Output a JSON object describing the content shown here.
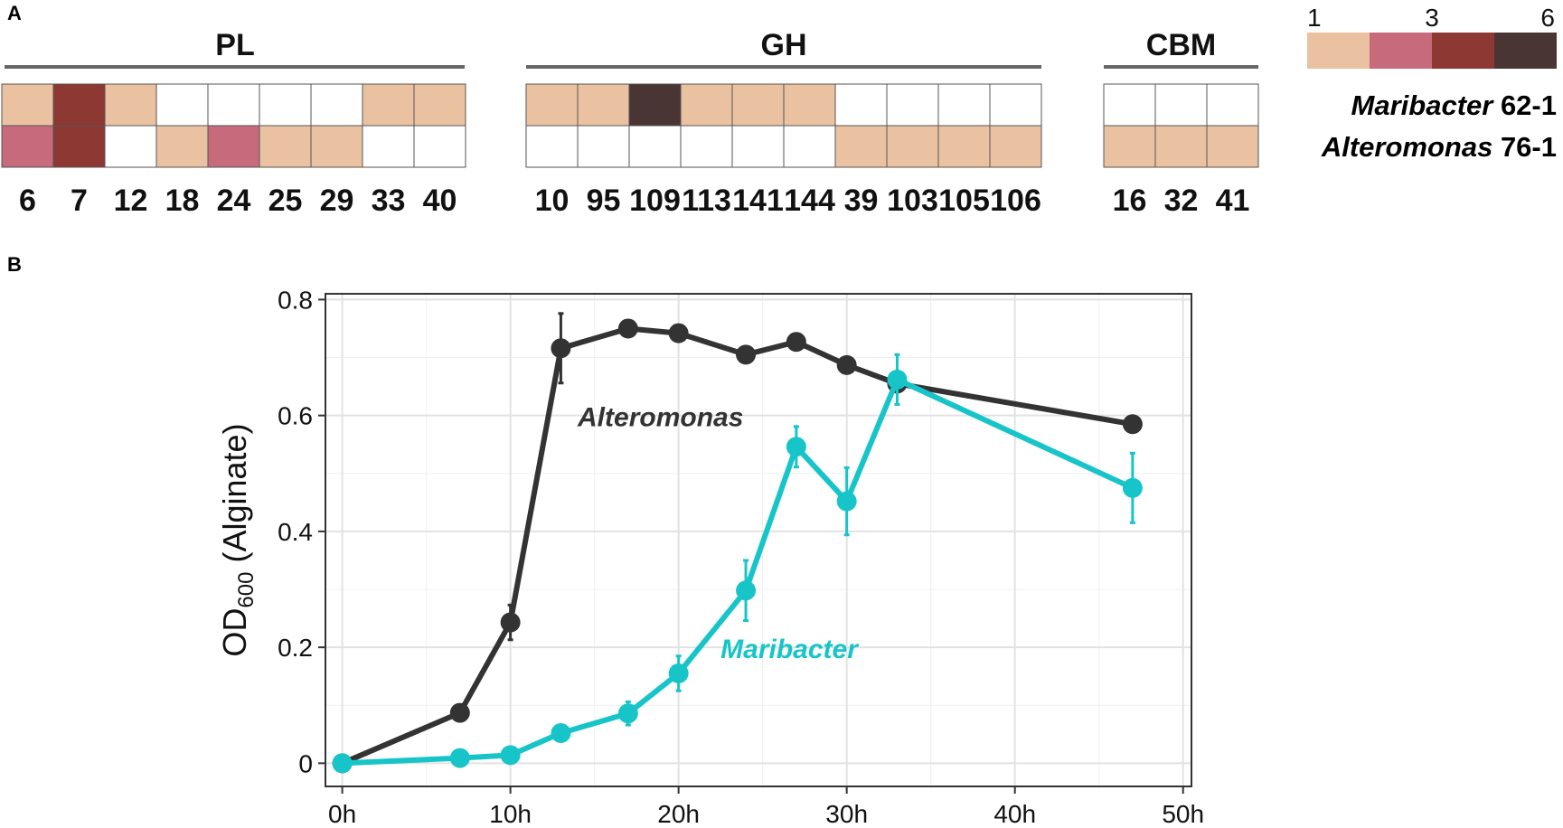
{
  "panel_a_label": "A",
  "panel_b_label": "B",
  "colors": {
    "empty": "#ffffff",
    "level1": "#ebc2a1",
    "level2": "#c66a7c",
    "level3": "#8d3833",
    "level6": "#4a3535",
    "maribacter": "#17c5c9",
    "alteromonas": "#333333",
    "grid": "#e2e2e2",
    "group_line": "#666666"
  },
  "chart_data": [
    {
      "type": "heatmap",
      "rows": [
        {
          "genus": "Maribacter",
          "strain": "62-1"
        },
        {
          "genus": "Alteromonas",
          "strain": "76-1"
        }
      ],
      "groups": [
        {
          "name": "PL",
          "families": [
            "6",
            "7",
            "12",
            "18",
            "24",
            "25",
            "29",
            "33",
            "40"
          ],
          "values": [
            [
              1,
              3,
              1,
              0,
              0,
              0,
              0,
              1,
              1
            ],
            [
              2,
              3,
              0,
              1,
              2,
              1,
              1,
              0,
              0
            ]
          ]
        },
        {
          "name": "GH",
          "families": [
            "10",
            "95",
            "109",
            "113",
            "141",
            "144",
            "39",
            "103",
            "105",
            "106"
          ],
          "values": [
            [
              1,
              1,
              6,
              1,
              1,
              1,
              0,
              0,
              0,
              0
            ],
            [
              0,
              0,
              0,
              0,
              0,
              0,
              1,
              1,
              1,
              1
            ]
          ]
        },
        {
          "name": "CBM",
          "families": [
            "16",
            "32",
            "41"
          ],
          "values": [
            [
              0,
              0,
              0
            ],
            [
              1,
              1,
              1
            ]
          ]
        }
      ],
      "legend": {
        "tick_labels": [
          "1",
          "3",
          "6"
        ],
        "levels": [
          1,
          2,
          3,
          6
        ]
      }
    },
    {
      "type": "line",
      "ylabel": "OD",
      "ylabel_sub": "600",
      "ylabel_suffix": " (Alginate)",
      "xlim": [
        -1,
        50.5
      ],
      "ylim": [
        -0.04,
        0.81
      ],
      "x_ticks": [
        0,
        10,
        20,
        30,
        40,
        50
      ],
      "x_tick_labels": [
        "0h",
        "10h",
        "20h",
        "30h",
        "40h",
        "50h"
      ],
      "y_ticks": [
        0,
        0.2,
        0.4,
        0.6,
        0.8
      ],
      "y_tick_labels": [
        "0",
        "0.2",
        "0.4",
        "0.6",
        "0.8"
      ],
      "grid": true,
      "series": [
        {
          "name": "Alteromonas",
          "x": [
            0,
            7,
            10,
            13,
            17,
            20,
            24,
            27,
            30,
            33,
            47
          ],
          "y": [
            0,
            0.087,
            0.243,
            0.716,
            0.75,
            0.742,
            0.705,
            0.727,
            0.687,
            0.655,
            0.585
          ],
          "err": [
            0,
            0,
            0.03,
            0.06,
            0,
            0,
            0,
            0,
            0,
            0,
            0
          ]
        },
        {
          "name": "Maribacter",
          "x": [
            0,
            7,
            10,
            13,
            17,
            20,
            24,
            27,
            30,
            33,
            47
          ],
          "y": [
            0,
            0.009,
            0.014,
            0.052,
            0.086,
            0.155,
            0.298,
            0.546,
            0.452,
            0.662,
            0.475
          ],
          "err": [
            0,
            0,
            0,
            0,
            0.02,
            0.03,
            0.052,
            0.035,
            0.058,
            0.043,
            0.06
          ]
        }
      ]
    }
  ]
}
